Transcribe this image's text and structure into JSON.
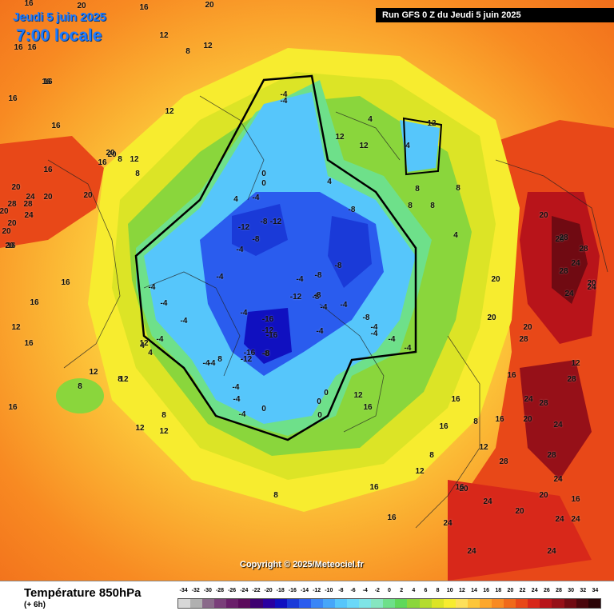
{
  "header": {
    "date_title": "Jeudi 5 juin 2025",
    "time_title": "7:00 locale",
    "run_info": "Run GFS 0 Z du Jeudi 5 juin 2025"
  },
  "map": {
    "copyright": "Copyright © 2025/Meteociel.fr",
    "contour_labels": [
      "16",
      "20",
      "16",
      "20",
      "12",
      "12",
      "8",
      "16",
      "16",
      "16",
      "12",
      "12",
      "8",
      "8",
      "16",
      "16",
      "16",
      "20",
      "20",
      "16",
      "20",
      "16",
      "16",
      "20",
      "20",
      "24",
      "20",
      "28",
      "28",
      "24",
      "20",
      "20",
      "20",
      "16",
      "16",
      "16",
      "12",
      "16",
      "8",
      "12",
      "8",
      "12",
      "8",
      "12",
      "8",
      "4",
      "4",
      "0",
      "0",
      "-4",
      "-4",
      "-4",
      "-4",
      "-4",
      "-8",
      "-4",
      "-8",
      "-12",
      "-12",
      "-4",
      "-4",
      "-4",
      "-8",
      "-4",
      "0",
      "-8",
      "-12",
      "-4",
      "-4",
      "-16",
      "-12",
      "-16",
      "-16",
      "-12",
      "-8",
      "-4",
      "-4",
      "-4",
      "-4",
      "-4",
      "-4",
      "-8",
      "-8",
      "-8",
      "-8",
      "-8",
      "-4",
      "-4",
      "-4",
      "-4",
      "-4",
      "0",
      "0",
      "0",
      "0",
      "4",
      "4",
      "4",
      "4",
      "4",
      "8",
      "8",
      "8",
      "8",
      "8",
      "12",
      "12",
      "12",
      "12",
      "12",
      "12",
      "16",
      "16",
      "16",
      "16",
      "16",
      "20",
      "20",
      "20",
      "20",
      "20",
      "24",
      "24",
      "24",
      "28",
      "28",
      "28",
      "28",
      "24",
      "20",
      "20",
      "16",
      "16",
      "12",
      "12",
      "8",
      "8",
      "12",
      "16",
      "16",
      "20",
      "24",
      "24",
      "24",
      "24",
      "24",
      "28",
      "28",
      "24",
      "20",
      "28",
      "28",
      "28",
      "24",
      "24"
    ],
    "palette": [
      "#d7d7d7",
      "#b0b0b0",
      "#8a6a8a",
      "#7a3f7a",
      "#6a1f6a",
      "#5b0b5b",
      "#3e0070",
      "#2a00a0",
      "#1010c0",
      "#1a3ad8",
      "#2a5cee",
      "#3a86f6",
      "#46a6f9",
      "#56c6fb",
      "#6ad8f8",
      "#7ee4e6",
      "#86e6c0",
      "#6ee08a",
      "#5fd85a",
      "#8ad63c",
      "#b4dc2e",
      "#dce426",
      "#f7ec2f",
      "#fde05a",
      "#fcc63a",
      "#fca72c",
      "#f88a22",
      "#f06a1a",
      "#e84818",
      "#d8281a",
      "#b8141a",
      "#961018",
      "#700a12",
      "#4a060c",
      "#2a0306"
    ]
  },
  "legend": {
    "title": "Température 850hPa",
    "subtitle": "(+ 6h)",
    "scale": [
      "-34",
      "-32",
      "-30",
      "-28",
      "-26",
      "-24",
      "-22",
      "-20",
      "-18",
      "-16",
      "-14",
      "-12",
      "-10",
      "-8",
      "-6",
      "-4",
      "-2",
      "0",
      "2",
      "4",
      "6",
      "8",
      "10",
      "12",
      "14",
      "16",
      "18",
      "20",
      "22",
      "24",
      "26",
      "28",
      "30",
      "32",
      "34"
    ]
  }
}
